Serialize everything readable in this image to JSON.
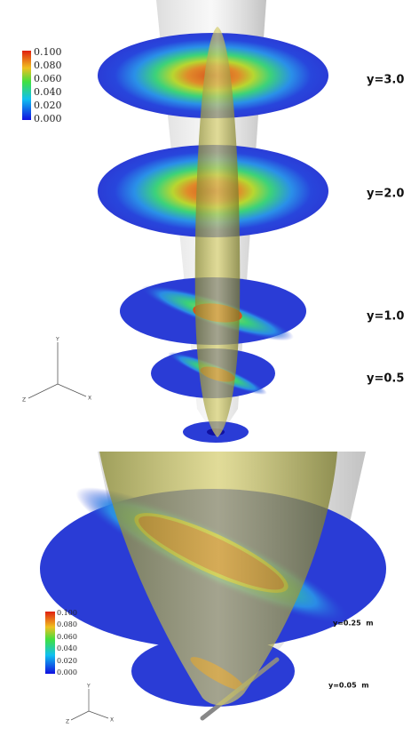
{
  "top_panel": {
    "colorbar_labels": [
      "0.100",
      "0.080",
      "0.060",
      "0.040",
      "0.020",
      "0.000"
    ],
    "slice_labels": [
      "y=3.0",
      "y=2.0",
      "y=1.0",
      "y=0.5"
    ],
    "axis_labels": [
      "Y",
      "Z",
      "X"
    ]
  },
  "bottom_panel": {
    "colorbar_labels": [
      "0.100",
      "0.080",
      "0.060",
      "0.040",
      "0.020",
      "0.000"
    ],
    "slice_labels": [
      "y=0.25  m",
      "y=0.05  m"
    ],
    "axis_labels": [
      "Y",
      "Z",
      "X"
    ]
  }
}
